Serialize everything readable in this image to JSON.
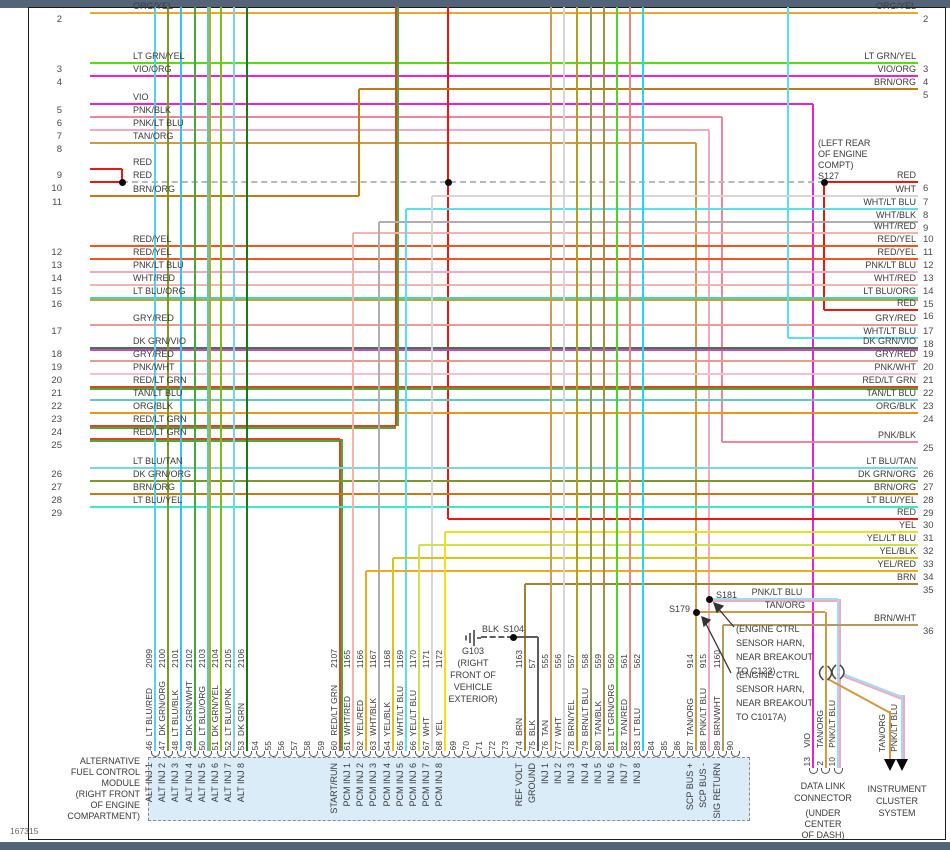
{
  "page": {
    "footer_id": "167315"
  },
  "left_rows": [
    {
      "n": "2",
      "label": "ORG/YEL"
    },
    {
      "n": "3",
      "label": "LT GRN/YEL"
    },
    {
      "n": "4",
      "label": "VIO/ORG"
    },
    {
      "n": "5",
      "label": "VIO"
    },
    {
      "n": "6",
      "label": "PNK/BLK"
    },
    {
      "n": "7",
      "label": "PNK/LT BLU"
    },
    {
      "n": "8",
      "label": "TAN/ORG"
    },
    {
      "n": "9",
      "label": "RED"
    },
    {
      "n": "10",
      "label": "RED"
    },
    {
      "n": "11",
      "label": "BRN/ORG"
    },
    {
      "n": "12",
      "label": "RED/YEL"
    },
    {
      "n": "13",
      "label": "RED/YEL"
    },
    {
      "n": "14",
      "label": "PNK/LT BLU"
    },
    {
      "n": "15",
      "label": "WHT/RED"
    },
    {
      "n": "16",
      "label": "LT BLU/ORG"
    },
    {
      "n": "17",
      "label": "GRY/RED"
    },
    {
      "n": "18",
      "label": "DK GRN/VIO"
    },
    {
      "n": "19",
      "label": "GRY/RED"
    },
    {
      "n": "20",
      "label": "PNK/WHT"
    },
    {
      "n": "21",
      "label": "RED/LT GRN"
    },
    {
      "n": "22",
      "label": "TAN/LT BLU"
    },
    {
      "n": "23",
      "label": "ORG/BLK"
    },
    {
      "n": "24",
      "label": "RED/LT GRN"
    },
    {
      "n": "25",
      "label": "RED/LT GRN"
    },
    {
      "n": "26",
      "label": "LT BLU/TAN"
    },
    {
      "n": "27",
      "label": "DK GRN/ORG"
    },
    {
      "n": "28",
      "label": "BRN/ORG"
    },
    {
      "n": "29",
      "label": "LT BLU/YEL"
    }
  ],
  "right_rows": [
    {
      "n": "2",
      "label": "ORG/YEL"
    },
    {
      "n": "3",
      "label": "LT GRN/YEL"
    },
    {
      "n": "4",
      "label": "VIO/ORG"
    },
    {
      "n": "5",
      "label": "BRN/ORG"
    },
    {
      "n": "6",
      "label": "RED"
    },
    {
      "n": "7",
      "label": "WHT"
    },
    {
      "n": "8",
      "label": "WHT/LT BLU"
    },
    {
      "n": "9",
      "label": "WHT/BLK"
    },
    {
      "n": "10",
      "label": "WHT/RED"
    },
    {
      "n": "11",
      "label": "RED/YEL"
    },
    {
      "n": "12",
      "label": "RED/YEL"
    },
    {
      "n": "13",
      "label": "PNK/LT BLU"
    },
    {
      "n": "14",
      "label": "WHT/RED"
    },
    {
      "n": "15",
      "label": "LT BLU/ORG"
    },
    {
      "n": "16",
      "label": "RED"
    },
    {
      "n": "17",
      "label": "GRY/RED"
    },
    {
      "n": "18",
      "label": "WHT/LT BLU"
    },
    {
      "n": "19",
      "label": "DK GRN/VIO"
    },
    {
      "n": "20",
      "label": "GRY/RED"
    },
    {
      "n": "21",
      "label": "PNK/WHT"
    },
    {
      "n": "22",
      "label": "RED/LT GRN"
    },
    {
      "n": "23",
      "label": "TAN/LT BLU"
    },
    {
      "n": "24",
      "label": "ORG/BLK"
    },
    {
      "n": "25",
      "label": "PNK/BLK"
    },
    {
      "n": "26",
      "label": "LT BLU/TAN"
    },
    {
      "n": "27",
      "label": "DK GRN/ORG"
    },
    {
      "n": "28",
      "label": "BRN/ORG"
    },
    {
      "n": "29",
      "label": "LT BLU/YEL"
    },
    {
      "n": "30",
      "label": "RED"
    },
    {
      "n": "31",
      "label": "YEL"
    },
    {
      "n": "32",
      "label": "YEL/LT BLU"
    },
    {
      "n": "33",
      "label": "YEL/BLK"
    },
    {
      "n": "34",
      "label": "YEL/RED"
    },
    {
      "n": "35",
      "label": "BRN"
    },
    {
      "n": "36",
      "label": "BRN/WHT"
    }
  ],
  "module": {
    "label_lines": [
      "ALTERNATIVE",
      "FUEL CONTROL",
      "MODULE",
      "(RIGHT FRONT",
      "OF ENGINE",
      "COMPARTMENT)"
    ],
    "pins": [
      {
        "n": 46,
        "circuit": "2099",
        "color": "LT BLU/RED",
        "fn": "ALT INJ 1"
      },
      {
        "n": 47,
        "circuit": "2100",
        "color": "DK GRN/ORG",
        "fn": "ALT INJ 2"
      },
      {
        "n": 48,
        "circuit": "2101",
        "color": "LT BLU/BLK",
        "fn": "ALT INJ 3"
      },
      {
        "n": 49,
        "circuit": "2102",
        "color": "DK GRN/WHT",
        "fn": "ALT INJ 4"
      },
      {
        "n": 50,
        "circuit": "2103",
        "color": "LT BLU/ORG",
        "fn": "ALT INJ 5"
      },
      {
        "n": 51,
        "circuit": "2104",
        "color": "DK GRN/YEL",
        "fn": "ALT INJ 6"
      },
      {
        "n": 52,
        "circuit": "2105",
        "color": "LT BLU/PNK",
        "fn": "ALT INJ 7"
      },
      {
        "n": 53,
        "circuit": "2106",
        "color": "DK GRN",
        "fn": "ALT INJ 8"
      },
      {
        "n": 54
      },
      {
        "n": 55
      },
      {
        "n": 56
      },
      {
        "n": 57
      },
      {
        "n": 58
      },
      {
        "n": 59
      },
      {
        "n": 60,
        "circuit": "2107",
        "color": "RED/LT GRN",
        "fn": "START/RUN"
      },
      {
        "n": 61,
        "circuit": "1165",
        "color": "WHT/RED",
        "fn": "PCM INJ 1"
      },
      {
        "n": 62,
        "circuit": "1166",
        "color": "YEL/RED",
        "fn": "PCM INJ 2"
      },
      {
        "n": 63,
        "circuit": "1167",
        "color": "WHT/BLK",
        "fn": "PCM INJ 3"
      },
      {
        "n": 64,
        "circuit": "1168",
        "color": "YEL/BLK",
        "fn": "PCM INJ 4"
      },
      {
        "n": 65,
        "circuit": "1169",
        "color": "WHT/LT BLU",
        "fn": "PCM INJ 5"
      },
      {
        "n": 66,
        "circuit": "1170",
        "color": "YEL/LT BLU",
        "fn": "PCM INJ 6"
      },
      {
        "n": 67,
        "circuit": "1171",
        "color": "WHT",
        "fn": "PCM INJ 7"
      },
      {
        "n": 68,
        "circuit": "1172",
        "color": "YEL",
        "fn": "PCM INJ 8"
      },
      {
        "n": 69
      },
      {
        "n": 70
      },
      {
        "n": 71
      },
      {
        "n": 72
      },
      {
        "n": 73
      },
      {
        "n": 74,
        "circuit": "1163",
        "color": "BRN",
        "fn": "REF VOLT"
      },
      {
        "n": 75,
        "circuit": "57",
        "color": "BLK",
        "fn": "GROUND"
      },
      {
        "n": 76,
        "circuit": "555",
        "color": "TAN",
        "fn": "INJ 1"
      },
      {
        "n": 77,
        "circuit": "556",
        "color": "WHT",
        "fn": "INJ 2"
      },
      {
        "n": 78,
        "circuit": "557",
        "color": "BRN/YEL",
        "fn": "INJ 3"
      },
      {
        "n": 79,
        "circuit": "558",
        "color": "BRN/LT BLU",
        "fn": "INJ 4"
      },
      {
        "n": 80,
        "circuit": "559",
        "color": "TAN/BLK",
        "fn": "INJ 5"
      },
      {
        "n": 81,
        "circuit": "560",
        "color": "LT GRN/ORG",
        "fn": "INJ 6"
      },
      {
        "n": 82,
        "circuit": "561",
        "color": "TAN/RED",
        "fn": "INJ 7"
      },
      {
        "n": 83,
        "circuit": "562",
        "color": "LT BLU",
        "fn": "INJ 8"
      },
      {
        "n": 84
      },
      {
        "n": 85
      },
      {
        "n": 86
      },
      {
        "n": 87,
        "circuit": "914",
        "color": "TAN/ORG",
        "fn": "SCP BUS +"
      },
      {
        "n": 88,
        "circuit": "915",
        "color": "PNK/LT BLU",
        "fn": "SCP BUS -"
      },
      {
        "n": 89,
        "circuit": "1160",
        "color": "BRN/WHT",
        "fn": "SIG RETURN"
      },
      {
        "n": 90
      }
    ]
  },
  "splices": {
    "s127": {
      "id": "S127",
      "loc": [
        "(LEFT REAR",
        "OF ENGINE",
        "COMPT)"
      ]
    },
    "s179": {
      "id": "S179"
    },
    "s181": {
      "id": "S181"
    },
    "s104": {
      "id": "S104"
    }
  },
  "ground": {
    "id": "G103",
    "loc": [
      "(RIGHT",
      "FRONT OF",
      "VEHICLE",
      "EXTERIOR)"
    ],
    "wire": "BLK"
  },
  "notes": {
    "c123": [
      "(ENGINE CTRL",
      "SENSOR HARN,",
      "NEAR BREAKOUT",
      "TO C123)"
    ],
    "c1017a": [
      "(ENGINE CTRL",
      "SENSOR HARN,",
      "NEAR BREAKOUT",
      "TO C1017A)"
    ]
  },
  "branch_labels": {
    "pnk_lt_blu": "PNK/LT BLU",
    "tan_org": "TAN/ORG"
  },
  "dlc": {
    "title": [
      "DATA LINK",
      "CONNECTOR"
    ],
    "location": [
      "(UNDER",
      "CENTER",
      "OF DASH)"
    ],
    "pins": [
      {
        "n": "13",
        "color": "VIO"
      },
      {
        "n": "2",
        "color": "TAN/ORG"
      },
      {
        "n": "10",
        "color": "PNK/LT BLU"
      }
    ]
  },
  "cluster": {
    "title": [
      "INSTRUMENT",
      "CLUSTER",
      "SYSTEM"
    ],
    "wires": [
      "TAN/ORG",
      "PNK/LT BLU"
    ]
  },
  "wire_colors": {
    "ORG/YEL": "#f0a52a",
    "LT GRN/YEL": "#55dd11",
    "VIO/ORG": "#ee22cc",
    "VIO": "#ee22cc",
    "PNK/BLK": "#f2849e",
    "PNK/LT BLU": "#f2a9c4",
    "TAN/ORG": "#d09a40",
    "RED": "#ee1515",
    "BRN/ORG": "#c57a10",
    "RED/YEL": "#f5551a",
    "WHT/RED": "#f5b3aa",
    "LT BLU/ORG": "#3fd4c4",
    "GRY/RED": "#eb9a90",
    "DK GRN/VIO": "#3f7a3f",
    "PNK/WHT": "#f7bdd2",
    "RED/LT GRN": "#e8401c",
    "TAN/LT BLU": "#63c9b8",
    "ORG/BLK": "#ef9416",
    "LT BLU/TAN": "#74dcd8",
    "DK GRN/ORG": "#7a9a22",
    "LT BLU/YEL": "#3ce8cc",
    "YEL": "#efe01a",
    "YEL/LT BLU": "#cfe24a",
    "YEL/BLK": "#d9c514",
    "YEL/RED": "#f5a81a",
    "BRN": "#a08233",
    "BRN/WHT": "#b59a5e",
    "WHT": "#d6d6d6",
    "WHT/BLK": "#aeaeae",
    "WHT/LT BLU": "#55e2ee",
    "LT BLU/RED": "#50d5e8",
    "LT BLU/BLK": "#38c5de",
    "DK GRN/WHT": "#3faa3f",
    "DK GRN/YEL": "#85b81e",
    "LT BLU/PNK": "#7cd2ea",
    "DK GRN": "#17781c",
    "TAN": "#c3a35a",
    "BRN/YEL": "#b2a21a",
    "BRN/LT BLU": "#8f9a55",
    "TAN/BLK": "#a68f42",
    "LT GRN/ORG": "#4fd622",
    "TAN/RED": "#e8897b",
    "LT BLU": "#25d6ec",
    "BLK": "#5c5c5c",
    "DASH": "#b8b8b8"
  }
}
